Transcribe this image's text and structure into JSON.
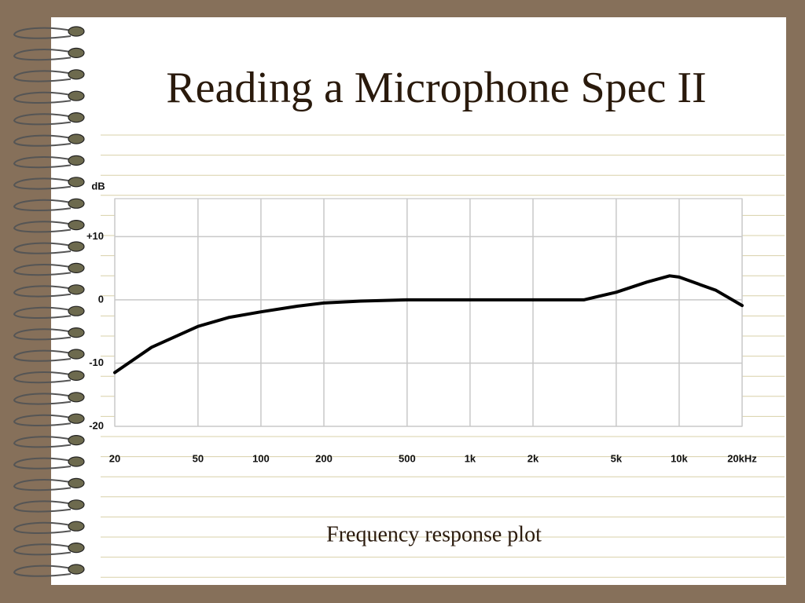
{
  "title": "Reading a Microphone Spec II",
  "caption": "Frequency response plot",
  "chart_data": {
    "type": "line",
    "y_label": "dB",
    "x": [
      20,
      30,
      50,
      70,
      100,
      150,
      200,
      300,
      500,
      1000,
      2000,
      3500,
      5000,
      7000,
      9000,
      10000,
      15000,
      20000
    ],
    "series": [
      {
        "color": "#000000",
        "values": [
          -11.5,
          -7.5,
          -4.2,
          -2.8,
          -1.9,
          -1,
          -0.5,
          -0.2,
          0,
          0,
          0,
          0,
          1.2,
          2.8,
          3.8,
          3.6,
          1.5,
          -0.9
        ]
      }
    ],
    "xlim": [
      20,
      20000
    ],
    "ylim": [
      -20,
      16
    ],
    "xticks": [
      20,
      50,
      100,
      200,
      500,
      {
        "value": 1000,
        "label": "1k"
      },
      {
        "value": 2000,
        "label": "2k"
      },
      {
        "value": 5000,
        "label": "5k"
      },
      {
        "value": 10000,
        "label": "10k"
      },
      {
        "value": 20000,
        "label": "20kHz"
      }
    ],
    "yticks": [
      {
        "value": 10,
        "label": "+10"
      },
      0,
      -10,
      -20
    ],
    "log_x": true,
    "grid": true
  }
}
